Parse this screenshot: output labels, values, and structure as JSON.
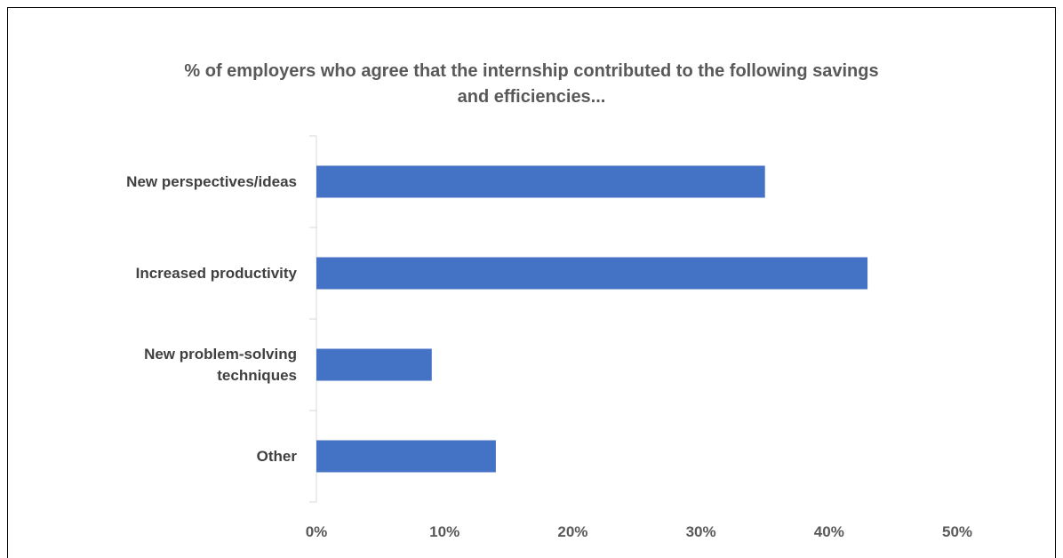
{
  "chart_data": {
    "type": "bar",
    "orientation": "horizontal",
    "title": "% of employers who agree that the internship contributed to the following savings and efficiencies...",
    "title_lines": [
      "% of employers who agree that the internship contributed to the following savings",
      "and efficiencies..."
    ],
    "categories": [
      "New perspectives/ideas",
      "Increased productivity",
      "New problem-solving\ntechniques",
      "Other"
    ],
    "values": [
      35,
      43,
      9,
      14
    ],
    "value_unit": "%",
    "xlim": [
      0,
      50
    ],
    "x_ticks": [
      "0%",
      "10%",
      "20%",
      "30%",
      "40%",
      "50%"
    ],
    "x_tick_values": [
      0,
      10,
      20,
      30,
      40,
      50
    ],
    "grid": false,
    "legend": "none",
    "colors": {
      "bar": "#4472C4",
      "axis": "#D9D9D9",
      "text": "#595959"
    }
  }
}
